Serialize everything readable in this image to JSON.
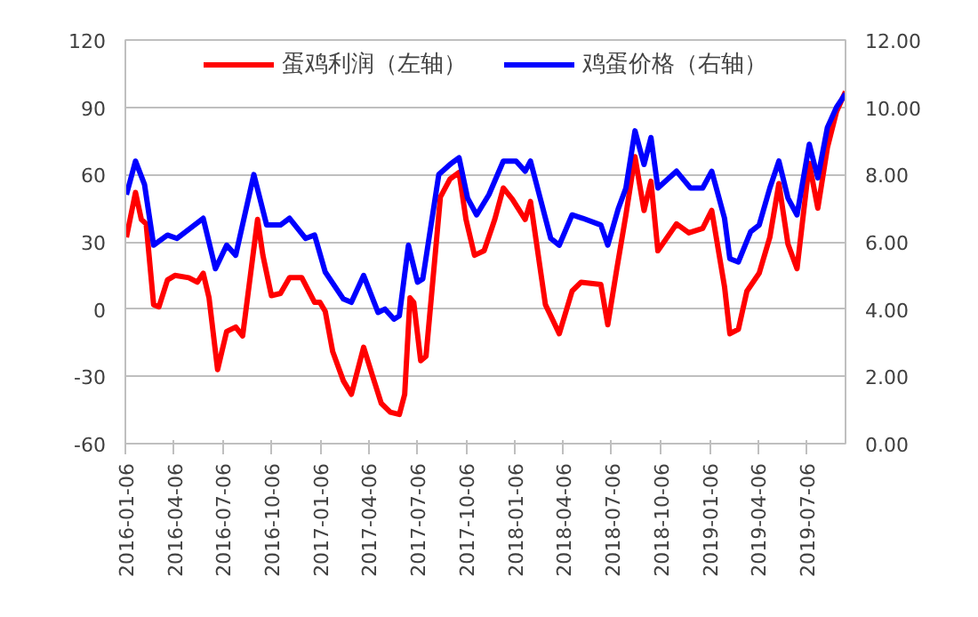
{
  "chart_data": {
    "type": "line",
    "x": [
      "2016-01-08",
      "2016-01-25",
      "2016-02-05",
      "2016-02-14",
      "2016-02-28",
      "2016-03-09",
      "2016-03-25",
      "2016-04-08",
      "2016-05-04",
      "2016-05-20",
      "2016-05-31",
      "2016-06-11",
      "2016-06-27",
      "2016-07-14",
      "2016-07-31",
      "2016-08-13",
      "2016-09-10",
      "2016-09-20",
      "2016-10-06",
      "2016-10-23",
      "2016-11-09",
      "2016-12-02",
      "2016-12-26",
      "2017-01-05",
      "2017-01-15",
      "2017-01-29",
      "2017-02-18",
      "2017-03-05",
      "2017-03-28",
      "2017-04-14",
      "2017-04-30",
      "2017-05-17",
      "2017-06-03",
      "2017-06-13",
      "2017-06-23",
      "2017-06-30",
      "2017-07-13",
      "2017-07-23",
      "2017-08-19",
      "2017-09-06",
      "2017-09-23",
      "2017-10-06",
      "2017-10-22",
      "2017-11-09",
      "2017-11-29",
      "2017-12-15",
      "2018-01-01",
      "2018-01-25",
      "2018-02-04",
      "2018-03-04",
      "2018-03-20",
      "2018-03-30",
      "2018-04-23",
      "2018-05-10",
      "2018-06-16",
      "2018-06-29",
      "2018-07-16",
      "2018-08-02",
      "2018-08-19",
      "2018-09-05",
      "2018-09-18",
      "2018-10-01",
      "2018-11-05",
      "2018-11-28",
      "2018-12-24",
      "2019-01-10",
      "2019-02-03",
      "2019-02-13",
      "2019-03-01",
      "2019-03-17",
      "2019-04-09",
      "2019-04-29",
      "2019-05-16",
      "2019-06-02",
      "2019-06-19",
      "2019-07-12",
      "2019-07-28",
      "2019-08-15",
      "2019-09-01",
      "2019-09-18"
    ],
    "series": [
      {
        "name": "蛋鸡利润（左轴）",
        "color": "#ff0000",
        "values": [
          32,
          52,
          40,
          38,
          2,
          1,
          13,
          15,
          14,
          12,
          16,
          5,
          -27,
          -10,
          -8,
          -12,
          40,
          24,
          6,
          7,
          14,
          14,
          3,
          3,
          -1,
          -19,
          -32,
          -38,
          -17,
          -30,
          -42,
          -46,
          -47,
          -38,
          5,
          3,
          -23,
          -21,
          50,
          58,
          61,
          40,
          24,
          26,
          40,
          54,
          49,
          40,
          48,
          2,
          -6,
          -11,
          8,
          12,
          11,
          -7,
          18,
          42,
          68,
          44,
          57,
          26,
          38,
          34,
          36,
          44,
          10,
          -11,
          -9,
          8,
          16,
          32,
          56,
          29,
          18,
          65,
          45,
          72,
          88,
          97
        ]
      },
      {
        "name": "鸡蛋价格（右轴）",
        "color": "#0000ff",
        "axis": "y2",
        "x": [
          "2016-01-08",
          "2016-01-25",
          "2016-02-11",
          "2016-02-28",
          "2016-03-25",
          "2016-04-12",
          "2016-05-31",
          "2016-06-23",
          "2016-07-14",
          "2016-07-31",
          "2016-09-03",
          "2016-09-27",
          "2016-10-23",
          "2016-11-09",
          "2016-12-09",
          "2016-12-26",
          "2017-01-15",
          "2017-02-18",
          "2017-03-05",
          "2017-03-28",
          "2017-04-24",
          "2017-05-07",
          "2017-05-24",
          "2017-06-03",
          "2017-06-20",
          "2017-07-07",
          "2017-07-17",
          "2017-08-16",
          "2017-09-06",
          "2017-09-23",
          "2017-10-09",
          "2017-10-26",
          "2017-11-18",
          "2017-12-15",
          "2018-01-08",
          "2018-01-25",
          "2018-02-04",
          "2018-03-14",
          "2018-03-30",
          "2018-04-23",
          "2018-05-13",
          "2018-06-16",
          "2018-06-29",
          "2018-07-19",
          "2018-08-02",
          "2018-08-19",
          "2018-09-05",
          "2018-09-18",
          "2018-10-01",
          "2018-11-05",
          "2018-12-01",
          "2018-12-24",
          "2019-01-10",
          "2019-02-03",
          "2019-02-13",
          "2019-03-01",
          "2019-03-24",
          "2019-04-09",
          "2019-04-29",
          "2019-05-16",
          "2019-06-02",
          "2019-06-19",
          "2019-07-12",
          "2019-07-28",
          "2019-08-15",
          "2019-09-01",
          "2019-09-18"
        ],
        "values": [
          7.4,
          8.4,
          7.7,
          5.9,
          6.2,
          6.1,
          6.7,
          5.2,
          5.9,
          5.6,
          8.0,
          6.5,
          6.5,
          6.7,
          6.1,
          6.2,
          5.1,
          4.3,
          4.2,
          5.0,
          3.9,
          4.0,
          3.7,
          3.8,
          5.9,
          4.8,
          4.9,
          8.0,
          8.3,
          8.5,
          7.3,
          6.8,
          7.4,
          8.4,
          8.4,
          8.1,
          8.4,
          6.1,
          5.9,
          6.8,
          6.7,
          6.5,
          5.9,
          7.0,
          7.6,
          9.3,
          8.3,
          9.1,
          7.6,
          8.1,
          7.6,
          7.6,
          8.1,
          6.7,
          5.5,
          5.4,
          6.3,
          6.5,
          7.6,
          8.4,
          7.3,
          6.8,
          8.9,
          7.9,
          9.4,
          10.0,
          10.4
        ]
      }
    ],
    "xlim": [
      "2016-01-06",
      "2019-09-18"
    ],
    "xticks": [
      "2016-01-06",
      "2016-04-06",
      "2016-07-06",
      "2016-10-06",
      "2017-01-06",
      "2017-04-06",
      "2017-07-06",
      "2017-10-06",
      "2018-01-06",
      "2018-04-06",
      "2018-07-06",
      "2018-10-06",
      "2019-01-06",
      "2019-04-06",
      "2019-07-06"
    ],
    "ylim": [
      -60,
      120
    ],
    "yticks": [
      -60,
      -30,
      0,
      30,
      60,
      90,
      120
    ],
    "y2lim": [
      0,
      12
    ],
    "y2ticks": [
      {
        "value": 0,
        "label": "0.00"
      },
      {
        "value": 2,
        "label": "2.00"
      },
      {
        "value": 4,
        "label": "4.00"
      },
      {
        "value": 6,
        "label": "6.00"
      },
      {
        "value": 8,
        "label": "8.00"
      },
      {
        "value": 10,
        "label": "10.00"
      },
      {
        "value": 12,
        "label": "12.00"
      }
    ],
    "grid": "y",
    "legend": "top",
    "marker": "none",
    "line_style": "solid"
  }
}
